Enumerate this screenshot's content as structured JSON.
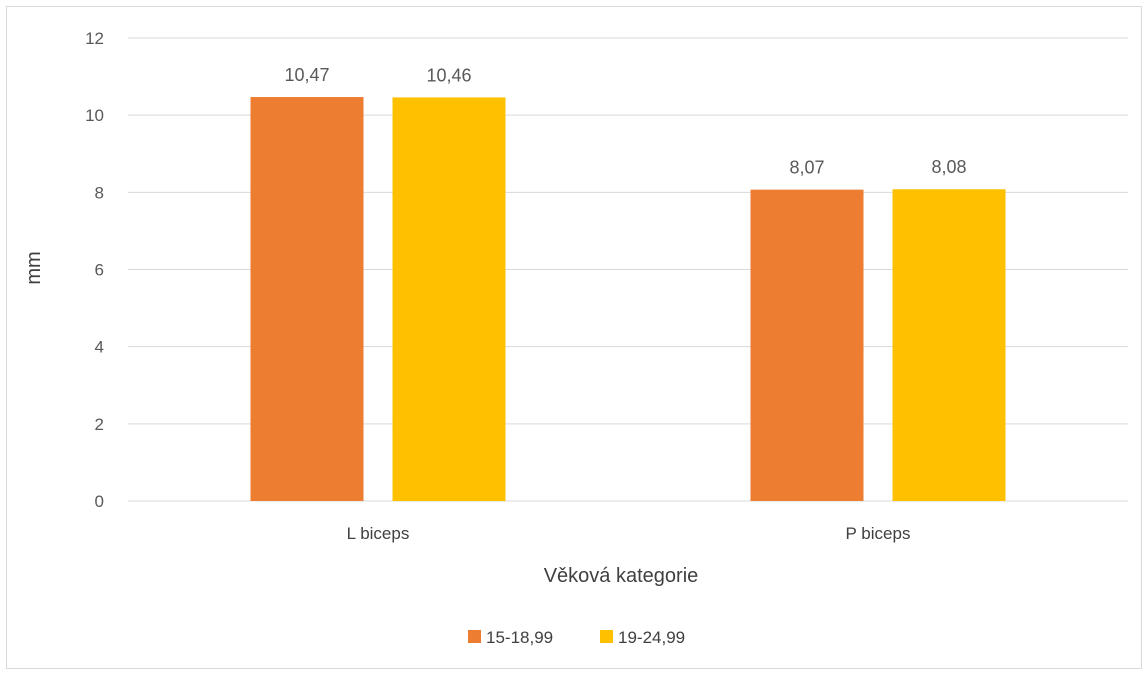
{
  "chart_data": {
    "type": "bar",
    "categories": [
      "L biceps",
      "P biceps"
    ],
    "series": [
      {
        "name": "15-18,99",
        "values": [
          10.47,
          8.07
        ],
        "labels": [
          "10,47",
          "8,07"
        ],
        "color": "#ED7D31"
      },
      {
        "name": "19-24,99",
        "values": [
          10.46,
          8.08
        ],
        "labels": [
          "10,46",
          "8,08"
        ],
        "color": "#FFC000"
      }
    ],
    "xlabel": "Věková kategorie",
    "ylabel": "mm",
    "ylim": [
      0,
      12
    ],
    "yticks": [
      "0",
      "2",
      "4",
      "6",
      "8",
      "10",
      "12"
    ],
    "grid": true,
    "legend_position": "bottom"
  }
}
